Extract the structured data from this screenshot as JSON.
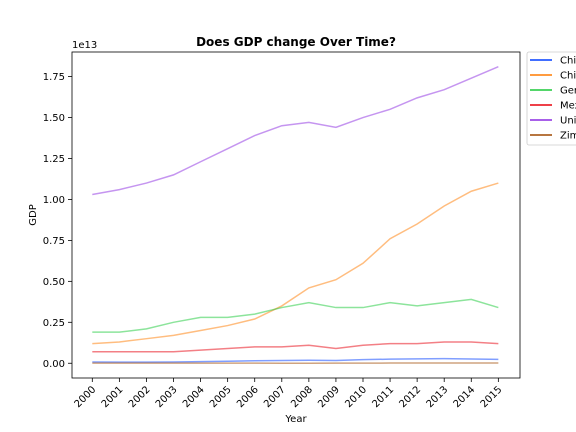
{
  "chart_data": {
    "type": "line",
    "title": "Does GDP change Over Time?",
    "x_label": "Year",
    "y_label": "GDP",
    "y_offset_label": "1e13",
    "x": [
      2000,
      2001,
      2002,
      2003,
      2004,
      2005,
      2006,
      2007,
      2008,
      2009,
      2010,
      2011,
      2012,
      2013,
      2014,
      2015
    ],
    "series": [
      {
        "name": "Chile",
        "color": "#023eff",
        "values": [
          0.008,
          0.007,
          0.007,
          0.008,
          0.01,
          0.012,
          0.015,
          0.017,
          0.018,
          0.017,
          0.022,
          0.025,
          0.027,
          0.028,
          0.026,
          0.024
        ]
      },
      {
        "name": "China",
        "color": "#ff7c00",
        "values": [
          0.12,
          0.13,
          0.15,
          0.17,
          0.2,
          0.23,
          0.27,
          0.35,
          0.46,
          0.51,
          0.61,
          0.76,
          0.85,
          0.96,
          1.05,
          1.1
        ]
      },
      {
        "name": "Germany",
        "color": "#1ac938",
        "values": [
          0.19,
          0.19,
          0.21,
          0.25,
          0.28,
          0.28,
          0.3,
          0.34,
          0.37,
          0.34,
          0.34,
          0.37,
          0.35,
          0.37,
          0.39,
          0.34
        ]
      },
      {
        "name": "Mexico",
        "color": "#e8000b",
        "values": [
          0.07,
          0.07,
          0.07,
          0.07,
          0.08,
          0.09,
          0.1,
          0.1,
          0.11,
          0.09,
          0.11,
          0.12,
          0.12,
          0.13,
          0.13,
          0.12
        ]
      },
      {
        "name": "United States",
        "color": "#8b2be2",
        "values": [
          1.03,
          1.06,
          1.1,
          1.15,
          1.23,
          1.31,
          1.39,
          1.45,
          1.47,
          1.44,
          1.5,
          1.55,
          1.62,
          1.67,
          1.74,
          1.81
        ]
      },
      {
        "name": "Zimbabwe",
        "color": "#9f4800",
        "values": [
          0.0007,
          0.0007,
          0.0006,
          0.0006,
          0.0006,
          0.0005,
          0.0005,
          0.0004,
          0.0004,
          0.0008,
          0.001,
          0.0012,
          0.0014,
          0.0015,
          0.0016,
          0.0016
        ]
      }
    ],
    "xlim": [
      1999.25,
      2015.8
    ],
    "xticks": [
      2000,
      2001,
      2002,
      2003,
      2004,
      2005,
      2006,
      2007,
      2008,
      2009,
      2010,
      2011,
      2012,
      2013,
      2014,
      2015
    ],
    "ylim": [
      -0.09,
      1.9
    ],
    "yticks": [
      {
        "value": 0,
        "label": "0.00"
      },
      {
        "value": 0.25,
        "label": "0.25"
      },
      {
        "value": 0.5,
        "label": "0.50"
      },
      {
        "value": 0.75,
        "label": "0.75"
      },
      {
        "value": 1,
        "label": "1.00"
      },
      {
        "value": 1.25,
        "label": "1.25"
      },
      {
        "value": 1.5,
        "label": "1.50"
      },
      {
        "value": 1.75,
        "label": "1.75"
      }
    ],
    "legend": "outside-upper-right"
  }
}
